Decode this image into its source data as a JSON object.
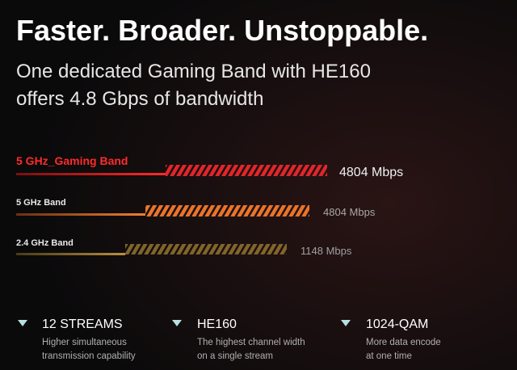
{
  "header": {
    "title": "Faster. Broader. Unstoppable.",
    "subtitle_lines": [
      "One dedicated Gaming Band with HE160",
      "offers 4.8 Gbps of bandwidth"
    ]
  },
  "bands": [
    {
      "label": "5 GHz_Gaming Band",
      "speed": "4804 Mbps"
    },
    {
      "label": "5 GHz Band",
      "speed": "4804 Mbps"
    },
    {
      "label": "2.4 GHz Band",
      "speed": "1148 Mbps"
    }
  ],
  "features": [
    {
      "title": "12 STREAMS",
      "description_lines": [
        "Higher simultaneous",
        "transmission capability"
      ]
    },
    {
      "title": "HE160",
      "description_lines": [
        "The highest channel width",
        "on a single stream"
      ]
    },
    {
      "title": "1024-QAM",
      "description_lines": [
        "More data encode",
        "at one time"
      ]
    }
  ]
}
